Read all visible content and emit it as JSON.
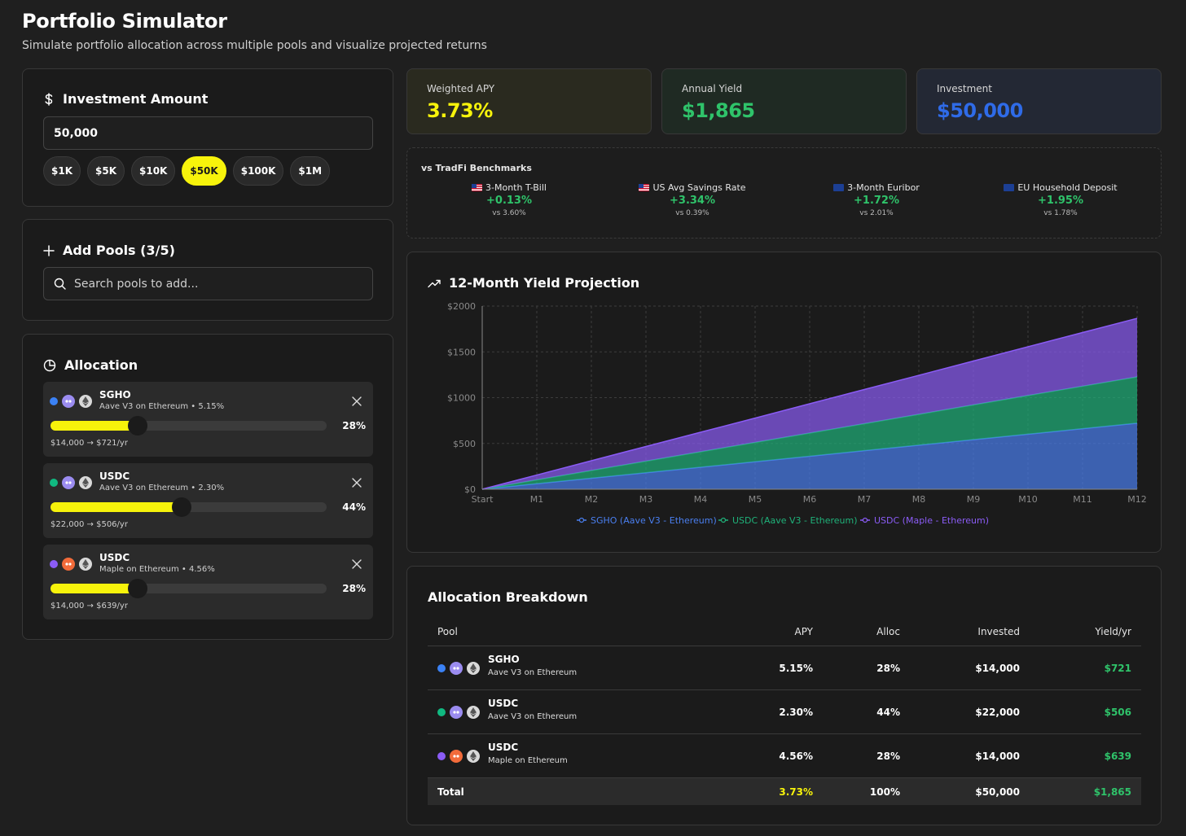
{
  "header": {
    "title": "Portfolio Simulator",
    "subtitle": "Simulate portfolio allocation across multiple pools and visualize projected returns"
  },
  "investment": {
    "heading": "Investment Amount",
    "value": "50,000",
    "presets": [
      "$1K",
      "$5K",
      "$10K",
      "$50K",
      "$100K",
      "$1M"
    ],
    "active_preset": "$50K"
  },
  "add_pools": {
    "heading": "Add Pools (3/5)",
    "placeholder": "Search pools to add..."
  },
  "allocation": {
    "heading": "Allocation",
    "items": [
      {
        "name": "SGHO",
        "sub": "Aave V3 on Ethereum • 5.15%",
        "pct_label": "28%",
        "percent": 28,
        "yield": "$14,000 → $721/yr",
        "dot_color": "#3b82f6",
        "protocol_icon": "aave-icon",
        "protocol_color": "#9b8cf0"
      },
      {
        "name": "USDC",
        "sub": "Aave V3 on Ethereum • 2.30%",
        "pct_label": "44%",
        "percent": 44,
        "yield": "$22,000 → $506/yr",
        "dot_color": "#10b981",
        "protocol_icon": "aave-icon",
        "protocol_color": "#9b8cf0"
      },
      {
        "name": "USDC",
        "sub": "Maple on Ethereum • 4.56%",
        "pct_label": "28%",
        "percent": 28,
        "yield": "$14,000 → $639/yr",
        "dot_color": "#8b5cf6",
        "protocol_icon": "maple-icon",
        "protocol_color": "#f26b3a"
      }
    ]
  },
  "stats": {
    "apy": {
      "label": "Weighted APY",
      "value": "3.73%",
      "color": "#f7f30b"
    },
    "yield": {
      "label": "Annual Yield",
      "value": "$1,865",
      "color": "#2fc36a"
    },
    "investment": {
      "label": "Investment",
      "value": "$50,000",
      "color": "#2f6be8"
    }
  },
  "benchmarks": {
    "title": "vs TradFi Benchmarks",
    "items": [
      {
        "name": "3-Month T-Bill",
        "flag": "us-flag-icon",
        "delta": "+0.13%",
        "vs": "vs 3.60%"
      },
      {
        "name": "US Avg Savings Rate",
        "flag": "us-flag-icon",
        "delta": "+3.34%",
        "vs": "vs 0.39%"
      },
      {
        "name": "3-Month Euribor",
        "flag": "eu-flag-icon",
        "delta": "+1.72%",
        "vs": "vs 2.01%"
      },
      {
        "name": "EU Household Deposit",
        "flag": "eu-flag-icon",
        "delta": "+1.95%",
        "vs": "vs 1.78%"
      }
    ]
  },
  "chart": {
    "heading": "12-Month Yield Projection"
  },
  "chart_data": {
    "type": "area",
    "stacked": true,
    "title": "12-Month Yield Projection",
    "x": [
      "Start",
      "M1",
      "M2",
      "M3",
      "M4",
      "M5",
      "M6",
      "M7",
      "M8",
      "M9",
      "M10",
      "M11",
      "M12"
    ],
    "y_ticks": [
      "$0",
      "$500",
      "$1000",
      "$1500",
      "$2000"
    ],
    "ylim": [
      0,
      2000
    ],
    "grid": true,
    "legend": "bottom",
    "series": [
      {
        "name": "SGHO (Aave V3 - Ethereum)",
        "color": "#4a7ff0",
        "values": [
          0,
          60,
          120,
          180,
          240,
          300,
          360,
          421,
          481,
          541,
          601,
          661,
          721
        ]
      },
      {
        "name": "USDC (Aave V3 - Ethereum)",
        "color": "#1fb27a",
        "values": [
          0,
          42,
          84,
          127,
          169,
          211,
          253,
          295,
          337,
          380,
          422,
          464,
          506
        ]
      },
      {
        "name": "USDC (Maple - Ethereum)",
        "color": "#8b5cf6",
        "values": [
          0,
          53,
          107,
          160,
          213,
          266,
          320,
          373,
          426,
          479,
          533,
          586,
          639
        ]
      }
    ]
  },
  "breakdown": {
    "heading": "Allocation Breakdown",
    "columns": {
      "pool": "Pool",
      "apy": "APY",
      "alloc": "Alloc",
      "invested": "Invested",
      "yield": "Yield/yr"
    },
    "rows": [
      {
        "name": "SGHO",
        "sub": "Aave V3 on Ethereum",
        "apy": "5.15%",
        "alloc": "28%",
        "invested": "$14,000",
        "yield": "$721",
        "dot_color": "#3b82f6",
        "protocol_color": "#9b8cf0"
      },
      {
        "name": "USDC",
        "sub": "Aave V3 on Ethereum",
        "apy": "2.30%",
        "alloc": "44%",
        "invested": "$22,000",
        "yield": "$506",
        "dot_color": "#10b981",
        "protocol_color": "#9b8cf0"
      },
      {
        "name": "USDC",
        "sub": "Maple on Ethereum",
        "apy": "4.56%",
        "alloc": "28%",
        "invested": "$14,000",
        "yield": "$639",
        "dot_color": "#8b5cf6",
        "protocol_color": "#f26b3a"
      }
    ],
    "total": {
      "label": "Total",
      "apy": "3.73%",
      "alloc": "100%",
      "invested": "$50,000",
      "yield": "$1,865"
    }
  }
}
